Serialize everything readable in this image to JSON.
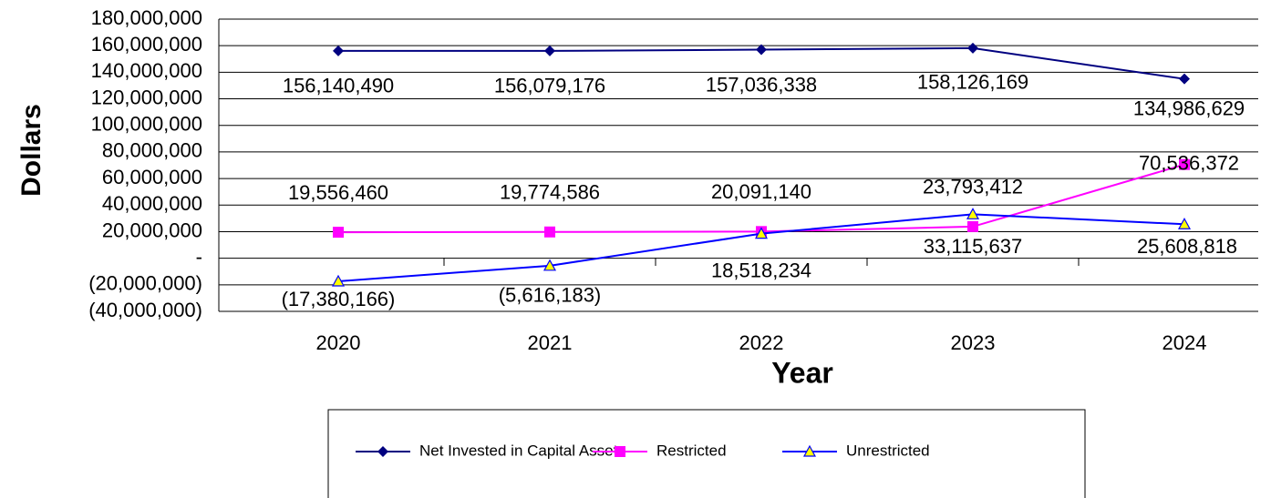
{
  "chart_data": {
    "type": "line",
    "xlabel": "Year",
    "ylabel": "Dollars",
    "categories": [
      "2020",
      "2021",
      "2022",
      "2023",
      "2024"
    ],
    "series": [
      {
        "name": "Net Invested in Capital Assets",
        "color": "#000080",
        "marker": "diamond",
        "values": [
          156140490,
          156079176,
          157036338,
          158126169,
          134986629
        ],
        "value_labels": [
          "156,140,490",
          "156,079,176",
          "157,036,338",
          "158,126,169",
          "134,986,629"
        ]
      },
      {
        "name": "Restricted",
        "color": "#ff00ff",
        "marker": "square",
        "values": [
          19556460,
          19774586,
          20091140,
          23793412,
          70536372
        ],
        "value_labels": [
          "19,556,460",
          "19,774,586",
          "20,091,140",
          "23,793,412",
          "70,536,372"
        ]
      },
      {
        "name": "Unrestricted",
        "color": "#0000ff",
        "marker": "triangle",
        "marker_fill": "#ffff00",
        "values": [
          -17380166,
          -5616183,
          18518234,
          33115637,
          25608818
        ],
        "value_labels": [
          "(17,380,166)",
          "(5,616,183)",
          "18,518,234",
          "33,115,637",
          "25,608,818"
        ]
      }
    ],
    "ylim": [
      -40000000,
      180000000
    ],
    "yticks": [
      {
        "value": -40000000,
        "label": "(40,000,000)"
      },
      {
        "value": -20000000,
        "label": "(20,000,000)"
      },
      {
        "value": 0,
        "label": "-"
      },
      {
        "value": 20000000,
        "label": "20,000,000"
      },
      {
        "value": 40000000,
        "label": "40,000,000"
      },
      {
        "value": 60000000,
        "label": "60,000,000"
      },
      {
        "value": 80000000,
        "label": "80,000,000"
      },
      {
        "value": 100000000,
        "label": "100,000,000"
      },
      {
        "value": 120000000,
        "label": "120,000,000"
      },
      {
        "value": 140000000,
        "label": "140,000,000"
      },
      {
        "value": 160000000,
        "label": "160,000,000"
      },
      {
        "value": 180000000,
        "label": "180,000,000"
      }
    ],
    "grid": true,
    "legend": "bottom"
  }
}
